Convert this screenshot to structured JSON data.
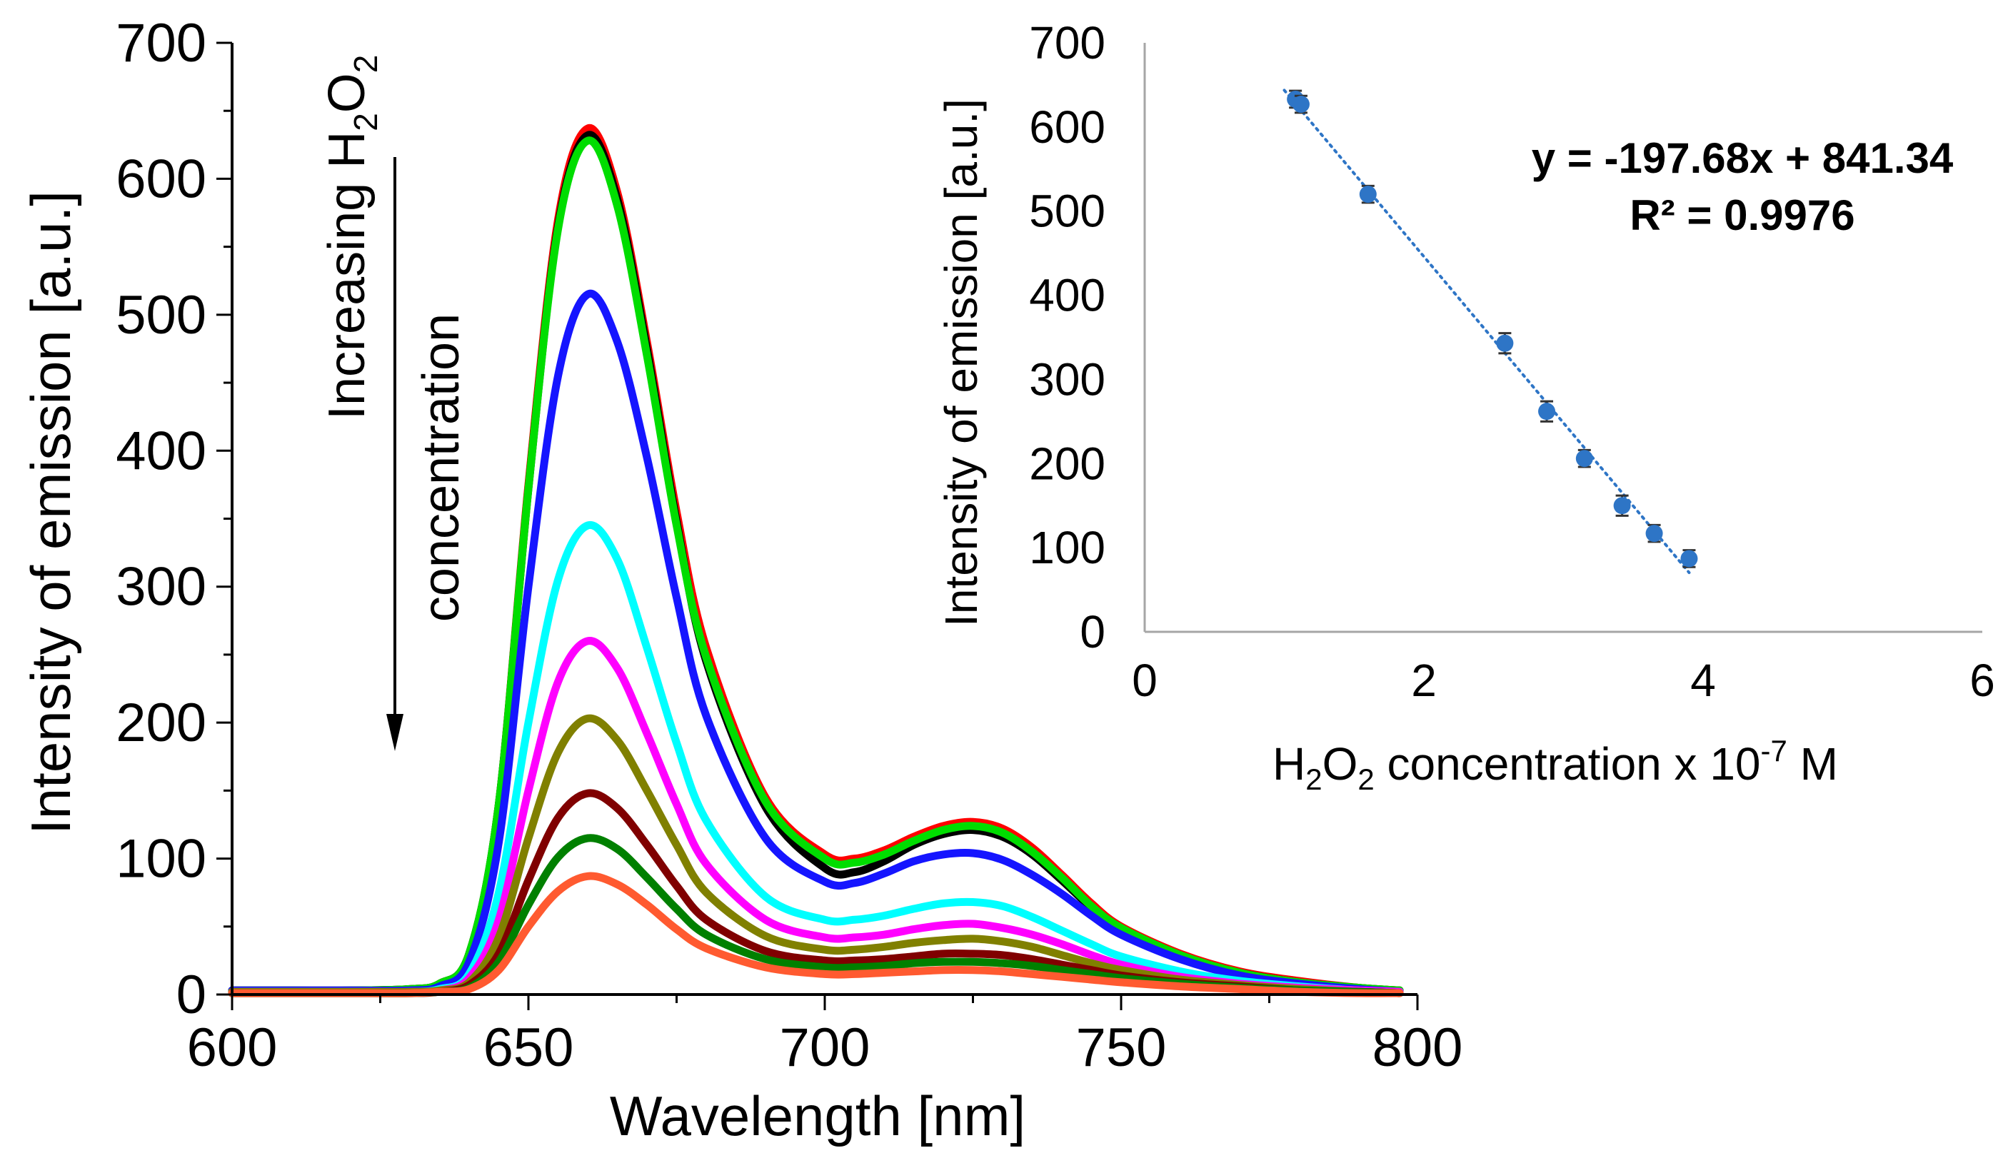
{
  "colors": {
    "red": "#ff0000",
    "black": "#000000",
    "green": "#00dd00",
    "blue": "#1515ff",
    "cyan": "#00ffff",
    "magenta": "#ff00ff",
    "olive": "#808000",
    "maroon": "#800000",
    "darkgreen": "#008000",
    "orange": "#ff5a30",
    "inset_marker": "#2e75c6",
    "axis": "#000000",
    "inset_axis": "#a6a6a6"
  },
  "annotation": {
    "line1_prefix": "Increasing H",
    "sub_2a": "2",
    "letter_O": "O",
    "sub_2b": "2",
    "line2": "concentration"
  },
  "chart_data": [
    {
      "type": "line",
      "title": "",
      "xlabel": "Wavelength [nm]",
      "ylabel": "Intensity of emission [a.u.]",
      "xlim": [
        600,
        800
      ],
      "ylim": [
        0,
        700
      ],
      "xticks": [
        "600",
        "650",
        "700",
        "750",
        "800"
      ],
      "yticks": [
        "0",
        "100",
        "200",
        "300",
        "400",
        "500",
        "600",
        "700"
      ],
      "x": [
        600,
        610,
        620,
        630,
        635,
        640,
        645,
        650,
        655,
        660,
        665,
        670,
        675,
        680,
        690,
        700,
        705,
        710,
        715,
        720,
        725,
        730,
        735,
        740,
        745,
        750,
        760,
        770,
        780,
        790,
        797
      ],
      "series": [
        {
          "name": "red",
          "color_key": "red",
          "values": [
            3,
            3,
            3,
            4,
            8,
            30,
            140,
            375,
            570,
            637,
            590,
            480,
            355,
            255,
            145,
            103,
            100,
            106,
            116,
            124,
            127,
            122,
            108,
            88,
            67,
            50,
            30,
            17,
            10,
            5,
            3
          ]
        },
        {
          "name": "black",
          "color_key": "black",
          "values": [
            3,
            3,
            3,
            4,
            8,
            30,
            140,
            372,
            565,
            632,
            585,
            475,
            348,
            245,
            138,
            93,
            90,
            98,
            110,
            118,
            121,
            116,
            103,
            84,
            64,
            48,
            28,
            16,
            9,
            5,
            3
          ]
        },
        {
          "name": "green",
          "color_key": "green",
          "values": [
            3,
            3,
            3,
            4,
            8,
            30,
            140,
            372,
            563,
            628,
            580,
            470,
            345,
            248,
            142,
            100,
            97,
            103,
            113,
            121,
            124,
            119,
            105,
            86,
            65,
            49,
            29,
            16,
            9,
            5,
            3
          ]
        },
        {
          "name": "blue",
          "color_key": "blue",
          "values": [
            3,
            3,
            3,
            3,
            6,
            24,
            112,
            300,
            455,
            515,
            480,
            395,
            292,
            205,
            115,
            83,
            82,
            89,
            98,
            103,
            104,
            99,
            88,
            74,
            58,
            44,
            26,
            14,
            8,
            4,
            2
          ]
        },
        {
          "name": "cyan",
          "color_key": "cyan",
          "values": [
            2,
            2,
            2,
            2,
            4,
            15,
            75,
            200,
            305,
            345,
            320,
            255,
            185,
            128,
            72,
            55,
            55,
            58,
            63,
            67,
            68,
            65,
            57,
            47,
            37,
            28,
            17,
            10,
            6,
            3,
            2
          ]
        },
        {
          "name": "magenta",
          "color_key": "magenta",
          "values": [
            2,
            2,
            2,
            2,
            3,
            12,
            55,
            150,
            230,
            260,
            240,
            192,
            140,
            96,
            55,
            42,
            42,
            44,
            48,
            51,
            52,
            49,
            44,
            37,
            29,
            22,
            13,
            8,
            5,
            3,
            2
          ]
        },
        {
          "name": "olive",
          "color_key": "olive",
          "values": [
            2,
            2,
            2,
            2,
            3,
            9,
            42,
            115,
            178,
            203,
            187,
            150,
            110,
            75,
            43,
            33,
            33,
            35,
            38,
            40,
            41,
            39,
            35,
            29,
            23,
            18,
            11,
            7,
            4,
            2,
            1
          ]
        },
        {
          "name": "maroon",
          "color_key": "maroon",
          "values": [
            1,
            1,
            1,
            1,
            2,
            7,
            30,
            84,
            130,
            148,
            137,
            110,
            80,
            55,
            32,
            25,
            25,
            26,
            28,
            30,
            30,
            29,
            26,
            22,
            18,
            14,
            9,
            6,
            3,
            2,
            1
          ]
        },
        {
          "name": "darkgreen",
          "color_key": "darkgreen",
          "values": [
            1,
            1,
            1,
            1,
            2,
            5,
            24,
            66,
            101,
            115,
            107,
            86,
            63,
            44,
            26,
            20,
            20,
            21,
            23,
            24,
            24,
            23,
            21,
            18,
            15,
            12,
            8,
            5,
            3,
            2,
            1
          ]
        },
        {
          "name": "orange",
          "color_key": "orange",
          "values": [
            1,
            1,
            1,
            1,
            2,
            4,
            18,
            50,
            76,
            87,
            81,
            66,
            48,
            34,
            20,
            15,
            15,
            16,
            17,
            18,
            18,
            17,
            15,
            13,
            11,
            9,
            6,
            4,
            2,
            1,
            1
          ]
        }
      ]
    },
    {
      "type": "scatter",
      "title": "",
      "xlabel": "H₂O₂ concentration x 10⁻⁷ M",
      "ylabel": "Intensity of emission [a.u.]",
      "xlim": [
        0,
        6
      ],
      "ylim": [
        0,
        700
      ],
      "xticks": [
        "0",
        "2",
        "4",
        "6"
      ],
      "yticks": [
        "0",
        "100",
        "200",
        "300",
        "400",
        "500",
        "600",
        "700"
      ],
      "x": [
        1.08,
        1.12,
        1.6,
        2.58,
        2.88,
        3.15,
        3.42,
        3.65,
        3.9
      ],
      "y": [
        633,
        627,
        520,
        343,
        262,
        206,
        150,
        117,
        87
      ],
      "error": [
        10,
        10,
        10,
        12,
        12,
        10,
        12,
        10,
        10
      ],
      "trendline": {
        "slope": -197.68,
        "intercept": 841.34,
        "x_range": [
          1.0,
          3.9
        ],
        "equation_label": "y = -197.68x + 841.34",
        "r2_label": "R² = 0.9976"
      },
      "xlabel_parts": {
        "h": "H",
        "sub1": "2",
        "o": "O",
        "sub2": "2",
        "rest": " concentration x 10",
        "sup": "-7",
        "unit": " M"
      }
    }
  ]
}
